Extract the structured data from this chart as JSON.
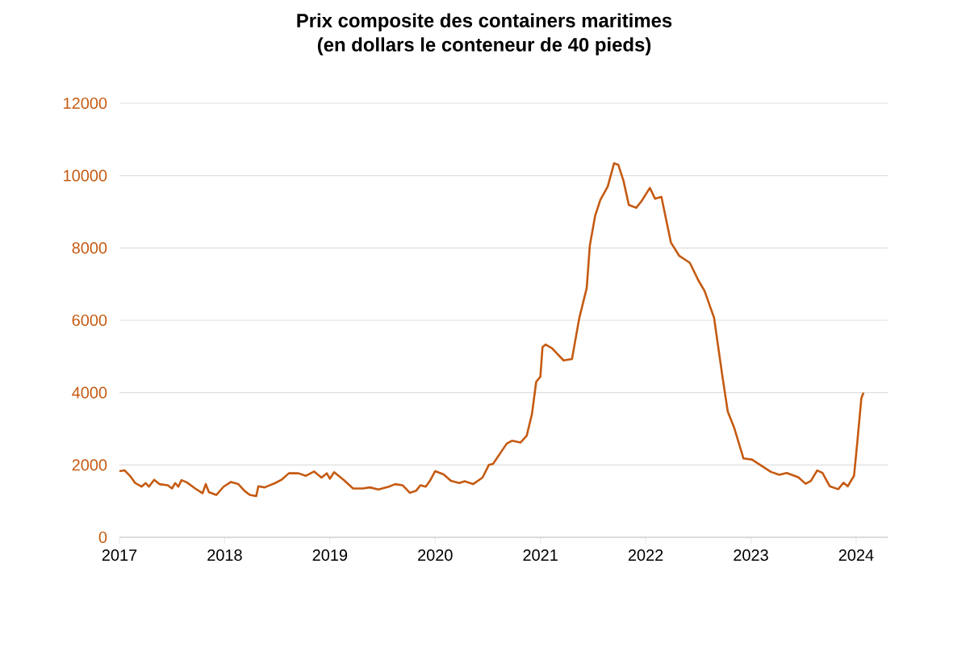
{
  "chart_data": {
    "type": "line",
    "title": "Prix composite des containers maritimes\n(en dollars le conteneur de 40 pieds)",
    "xlim": [
      2017,
      2024.3
    ],
    "xticks": [
      2017,
      2018,
      2019,
      2020,
      2021,
      2022,
      2023,
      2024
    ],
    "ylim": [
      0,
      12000
    ],
    "yticks": [
      0,
      2000,
      4000,
      6000,
      8000,
      10000,
      12000
    ],
    "grid": "y",
    "marker": "none",
    "line_style": "solid",
    "series": [
      {
        "color": "#c55a11",
        "x": [
          2017.0,
          2017.05,
          2017.1,
          2017.15,
          2017.21,
          2017.25,
          2017.28,
          2017.33,
          2017.38,
          2017.46,
          2017.5,
          2017.53,
          2017.56,
          2017.59,
          2017.64,
          2017.72,
          2017.79,
          2017.82,
          2017.85,
          2017.92,
          2017.99,
          2018.06,
          2018.13,
          2018.19,
          2018.24,
          2018.3,
          2018.32,
          2018.38,
          2018.48,
          2018.54,
          2018.61,
          2018.7,
          2018.77,
          2018.85,
          2018.92,
          2018.97,
          2019.0,
          2019.04,
          2019.13,
          2019.22,
          2019.31,
          2019.38,
          2019.46,
          2019.56,
          2019.62,
          2019.69,
          2019.76,
          2019.82,
          2019.86,
          2019.91,
          2019.95,
          2020.0,
          2020.08,
          2020.15,
          2020.23,
          2020.28,
          2020.36,
          2020.45,
          2020.51,
          2020.55,
          2020.68,
          2020.73,
          2020.81,
          2020.87,
          2020.92,
          2020.96,
          2021.0,
          2021.02,
          2021.05,
          2021.11,
          2021.22,
          2021.3,
          2021.37,
          2021.44,
          2021.47,
          2021.52,
          2021.57,
          2021.64,
          2021.7,
          2021.74,
          2021.79,
          2021.84,
          2021.91,
          2021.96,
          2022.04,
          2022.09,
          2022.15,
          2022.24,
          2022.32,
          2022.42,
          2022.5,
          2022.56,
          2022.65,
          2022.73,
          2022.78,
          2022.84,
          2022.93,
          2023.01,
          2023.09,
          2023.19,
          2023.27,
          2023.34,
          2023.45,
          2023.52,
          2023.57,
          2023.63,
          2023.68,
          2023.75,
          2023.83,
          2023.88,
          2023.92,
          2023.98,
          2024.01,
          2024.05,
          2024.07
        ],
        "values": [
          1830,
          1850,
          1700,
          1500,
          1400,
          1500,
          1400,
          1590,
          1470,
          1440,
          1350,
          1500,
          1400,
          1580,
          1520,
          1350,
          1220,
          1470,
          1250,
          1170,
          1400,
          1530,
          1470,
          1280,
          1170,
          1140,
          1410,
          1380,
          1500,
          1590,
          1770,
          1770,
          1700,
          1820,
          1650,
          1770,
          1620,
          1800,
          1590,
          1350,
          1350,
          1380,
          1320,
          1400,
          1470,
          1440,
          1230,
          1290,
          1440,
          1400,
          1560,
          1830,
          1740,
          1560,
          1500,
          1550,
          1470,
          1650,
          2000,
          2030,
          2590,
          2670,
          2620,
          2810,
          3410,
          4300,
          4440,
          5260,
          5330,
          5230,
          4890,
          4930,
          6070,
          6890,
          8070,
          8890,
          9330,
          9700,
          10340,
          10300,
          9850,
          9190,
          9110,
          9290,
          9660,
          9360,
          9410,
          8150,
          7780,
          7590,
          7110,
          6810,
          6070,
          4440,
          3480,
          3040,
          2180,
          2150,
          2000,
          1810,
          1730,
          1780,
          1660,
          1480,
          1560,
          1850,
          1780,
          1410,
          1330,
          1510,
          1410,
          1700,
          2590,
          3850,
          4000
        ]
      }
    ]
  }
}
